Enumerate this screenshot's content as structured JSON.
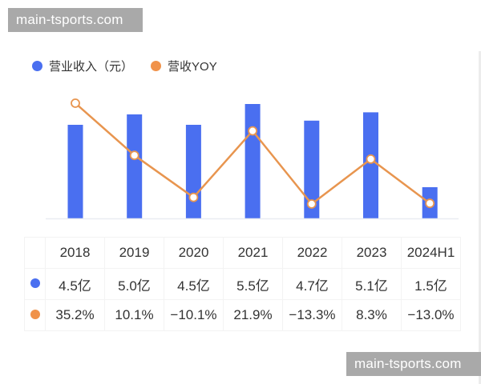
{
  "watermarks": {
    "top": "main-tsports.com",
    "bottom": "main-tsports.com"
  },
  "legend": {
    "items": [
      {
        "label": "营业收入（元）",
        "color": "#4a6ff0",
        "icon": "circle-dot"
      },
      {
        "label": "营收YOY",
        "color": "#f0924a",
        "icon": "circle-dot"
      }
    ]
  },
  "table": {
    "headers": [
      "2018",
      "2019",
      "2020",
      "2021",
      "2022",
      "2023",
      "2024H1"
    ],
    "rows": [
      {
        "series": "营业收入（元）",
        "color": "#4a6ff0",
        "cells": [
          "4.5亿",
          "5.0亿",
          "4.5亿",
          "5.5亿",
          "4.7亿",
          "5.1亿",
          "1.5亿"
        ]
      },
      {
        "series": "营收YOY",
        "color": "#f0924a",
        "cells": [
          "35.2%",
          "10.1%",
          "−10.1%",
          "21.9%",
          "−13.3%",
          "8.3%",
          "−13.0%"
        ]
      }
    ]
  },
  "chart_data": {
    "type": "bar",
    "title": "",
    "categories": [
      "2018",
      "2019",
      "2020",
      "2021",
      "2022",
      "2023",
      "2024H1"
    ],
    "series": [
      {
        "name": "营业收入（元）",
        "type": "bar",
        "color": "#4a6ff0",
        "unit": "亿",
        "values": [
          4.5,
          5.0,
          4.5,
          5.5,
          4.7,
          5.1,
          1.5
        ]
      },
      {
        "name": "营收YOY",
        "type": "line",
        "color": "#f0924a",
        "unit": "%",
        "values": [
          35.2,
          10.1,
          -10.1,
          21.9,
          -13.3,
          8.3,
          -13.0
        ]
      }
    ],
    "xlabel": "",
    "ylabel": "",
    "grid": false,
    "legend_position": "top-left",
    "axes_visible": false,
    "data_table_below": true
  }
}
